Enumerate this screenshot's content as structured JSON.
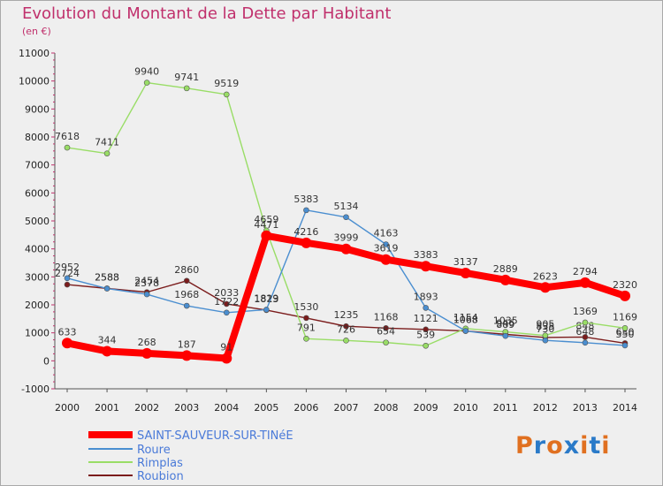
{
  "chart_data": {
    "type": "line",
    "title": "Evolution du Montant de la Dette par Habitant",
    "subtitle": "(en €)",
    "x": [
      "2000",
      "2001",
      "2002",
      "2003",
      "2004",
      "2005",
      "2006",
      "2007",
      "2008",
      "2009",
      "2010",
      "2011",
      "2012",
      "2013",
      "2014"
    ],
    "ylim": [
      -1000,
      11000
    ],
    "yticks": [
      "-1000",
      "0",
      "1000",
      "2000",
      "3000",
      "4000",
      "5000",
      "6000",
      "7000",
      "8000",
      "9000",
      "10000",
      "11000"
    ],
    "grid": false,
    "legend_position": "bottom-left",
    "series": [
      {
        "name": "Roubion",
        "color": "#7b1c1c",
        "values": [
          2724,
          2588,
          2454,
          2860,
          2033,
          1813,
          1530,
          1235,
          1168,
          1121,
          1068,
          946,
          835,
          848,
          630
        ]
      },
      {
        "name": "Rimplas",
        "color": "#99dd66",
        "values": [
          7618,
          7411,
          9940,
          9741,
          9519,
          4659,
          791,
          726,
          654,
          539,
          1154,
          1035,
          905,
          1369,
          1169
        ]
      },
      {
        "name": "Roure",
        "color": "#4a8ed0",
        "values": [
          2952,
          2583,
          2378,
          1968,
          1722,
          1829,
          5383,
          5134,
          4163,
          1893,
          1068,
          889,
          730,
          648,
          550
        ]
      },
      {
        "name": "SAINT-SAUVEUR-SUR-TINéE",
        "color": "#ff0000",
        "values": [
          633,
          344,
          268,
          187,
          91,
          4471,
          4216,
          3999,
          3619,
          3383,
          3137,
          2889,
          2623,
          2794,
          2320
        ]
      }
    ],
    "legend": [
      "SAINT-SAUVEUR-SUR-TINéE",
      "Roure",
      "Rimplas",
      "Roubion"
    ]
  },
  "logo": {
    "text": "Proxiti",
    "colors": [
      "#e07020",
      "#2a7ac8",
      "#e07020",
      "#2a7ac8",
      "#e07020",
      "#2a7ac8",
      "#e07020"
    ]
  }
}
